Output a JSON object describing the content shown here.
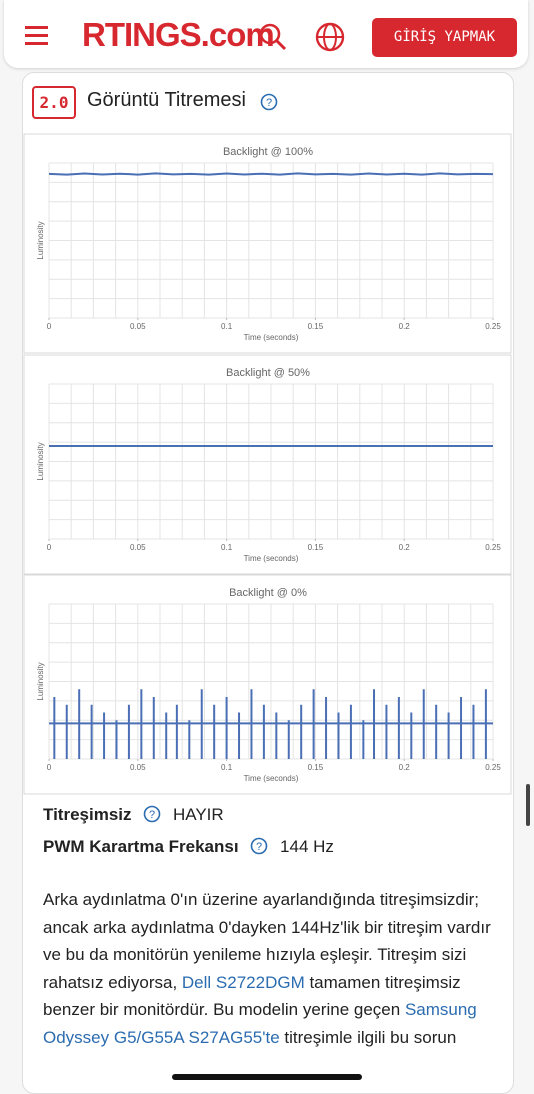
{
  "header": {
    "logo": "RTINGS.com",
    "login_button": "GİRİŞ YAPMAK"
  },
  "section": {
    "number": "2.0",
    "title": "Görüntü Titremesi"
  },
  "chart_data": [
    {
      "type": "line",
      "title": "Backlight @ 100%",
      "x_label": "Time (seconds)",
      "y_label": "Luminosity",
      "xlim": [
        0,
        0.25
      ],
      "xticks": [
        0,
        0.05,
        0.1,
        0.15,
        0.2,
        0.25
      ],
      "ylim": [
        0,
        1
      ],
      "color": "#4a6fb5",
      "x": [
        0,
        0.01,
        0.02,
        0.03,
        0.04,
        0.05,
        0.06,
        0.07,
        0.08,
        0.09,
        0.1,
        0.11,
        0.12,
        0.13,
        0.14,
        0.15,
        0.16,
        0.17,
        0.18,
        0.19,
        0.2,
        0.21,
        0.22,
        0.23,
        0.24,
        0.25
      ],
      "values": [
        0.93,
        0.925,
        0.932,
        0.926,
        0.931,
        0.925,
        0.933,
        0.927,
        0.93,
        0.925,
        0.932,
        0.926,
        0.931,
        0.925,
        0.933,
        0.927,
        0.93,
        0.925,
        0.932,
        0.926,
        0.931,
        0.925,
        0.933,
        0.927,
        0.93,
        0.928
      ]
    },
    {
      "type": "line",
      "title": "Backlight @ 50%",
      "x_label": "Time (seconds)",
      "y_label": "Luminosity",
      "xlim": [
        0,
        0.25
      ],
      "xticks": [
        0,
        0.05,
        0.1,
        0.15,
        0.2,
        0.25
      ],
      "ylim": [
        0,
        1
      ],
      "color": "#4a6fb5",
      "x": [
        0,
        0.25
      ],
      "values": [
        0.6,
        0.6
      ]
    },
    {
      "type": "pulse",
      "title": "Backlight @ 0%",
      "x_label": "Time (seconds)",
      "y_label": "Luminosity",
      "xlim": [
        0,
        0.25
      ],
      "xticks": [
        0,
        0.05,
        0.1,
        0.15,
        0.2,
        0.25
      ],
      "ylim": [
        0,
        1
      ],
      "color": "#4a6fb5",
      "base": 0.23,
      "low": 0,
      "x": [
        0.003,
        0.01,
        0.017,
        0.024,
        0.031,
        0.038,
        0.045,
        0.052,
        0.059,
        0.066,
        0.072,
        0.079,
        0.086,
        0.093,
        0.1,
        0.107,
        0.114,
        0.121,
        0.128,
        0.135,
        0.142,
        0.149,
        0.156,
        0.163,
        0.17,
        0.177,
        0.183,
        0.19,
        0.197,
        0.204,
        0.211,
        0.218,
        0.225,
        0.232,
        0.239,
        0.246
      ],
      "values": [
        0.4,
        0.35,
        0.45,
        0.35,
        0.3,
        0.25,
        0.35,
        0.45,
        0.4,
        0.3,
        0.35,
        0.25,
        0.45,
        0.35,
        0.4,
        0.3,
        0.45,
        0.35,
        0.3,
        0.25,
        0.35,
        0.45,
        0.4,
        0.3,
        0.35,
        0.25,
        0.45,
        0.35,
        0.4,
        0.3,
        0.45,
        0.35,
        0.3,
        0.4,
        0.35,
        0.45
      ]
    }
  ],
  "specs": [
    {
      "label": "Titreşimsiz",
      "value": "HAYIR"
    },
    {
      "label": "PWM Karartma Frekansı",
      "value": "144 Hz"
    }
  ],
  "paragraph": [
    {
      "text": "Arka aydınlatma 0'ın üzerine ayarlandığında titreşimsizdir; ancak arka aydınlatma 0'dayken 144Hz'lik bir titreşim vardır ve bu da monitörün yenileme hızıyla eşleşir. Titreşim sizi rahatsız ediyorsa, ",
      "link": false
    },
    {
      "text": "Dell S2722DGM",
      "link": true
    },
    {
      "text": " tamamen titreşimsiz benzer bir monitördür. Bu modelin yerine geçen ",
      "link": false
    },
    {
      "text": "Samsung Odyssey G5/G55A S27AG55'te",
      "link": true
    },
    {
      "text": " titreşimle ilgili bu sorun",
      "link": false
    }
  ]
}
